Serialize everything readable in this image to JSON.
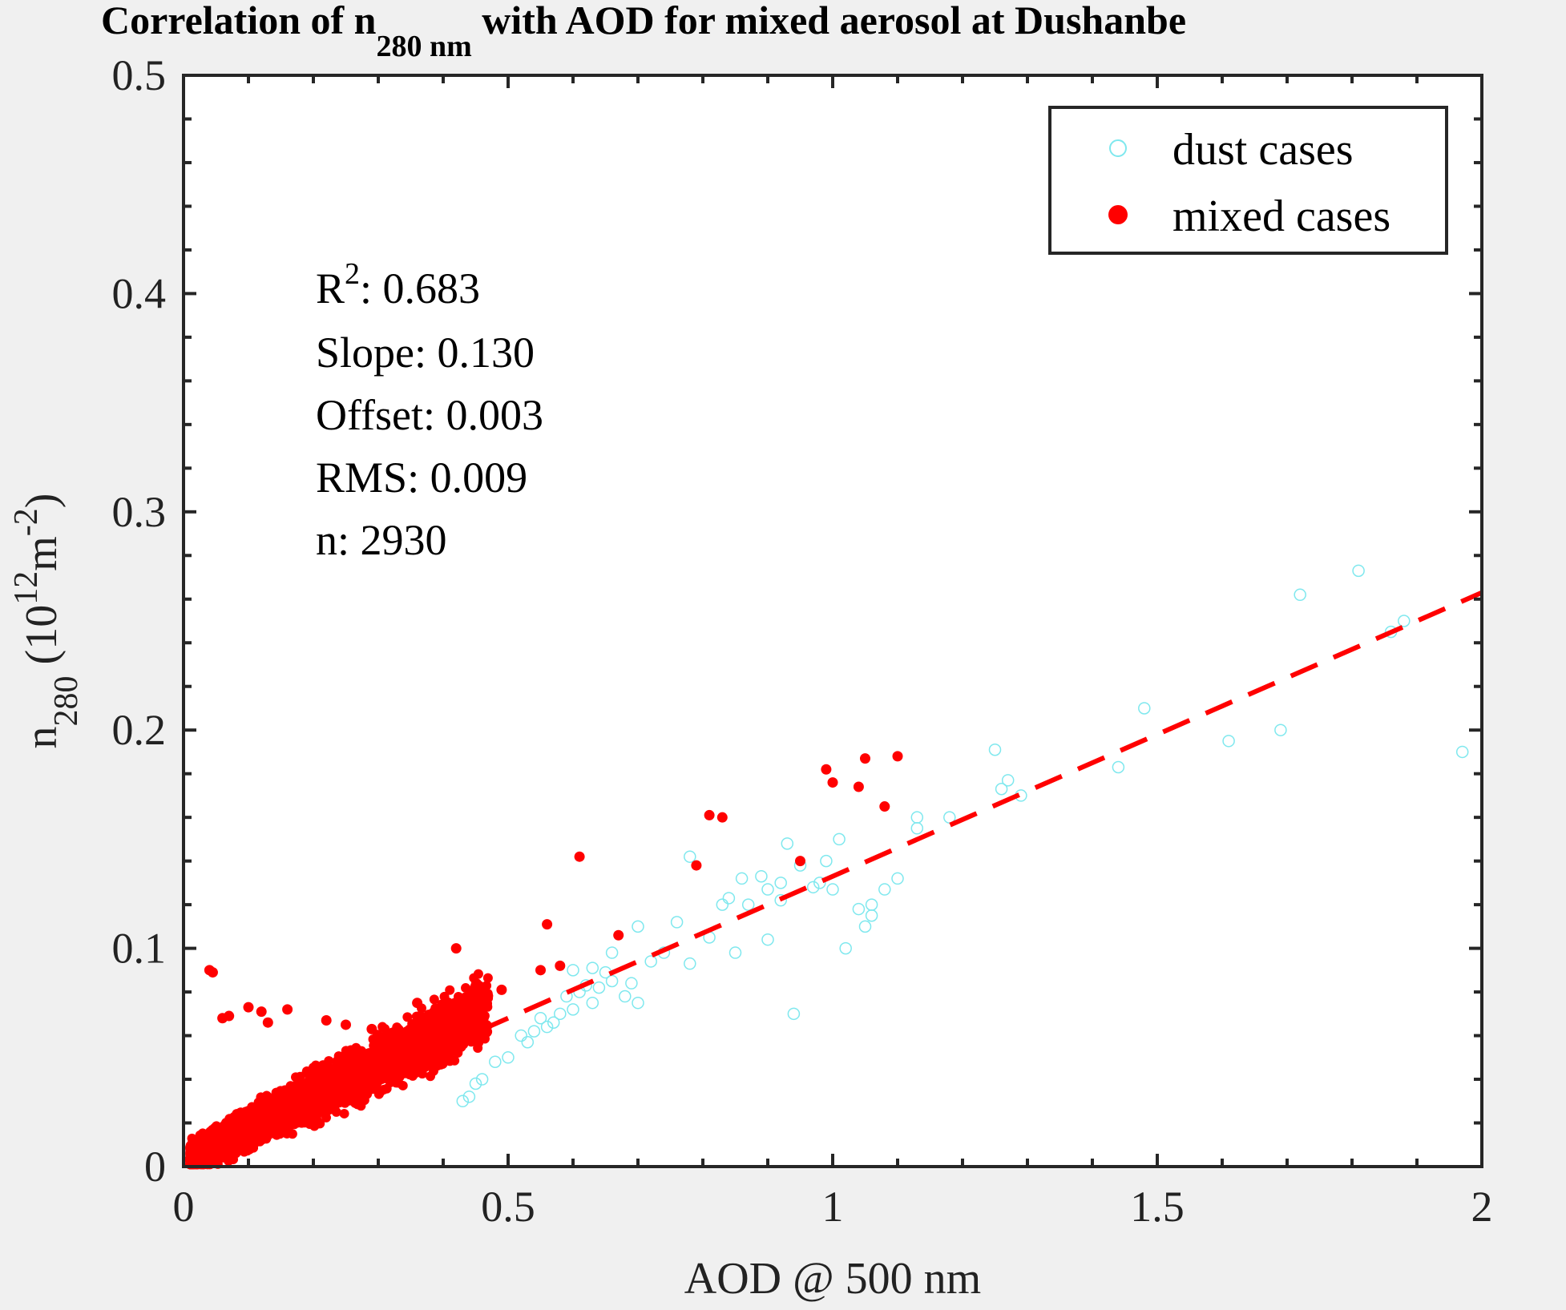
{
  "chart_data": {
    "type": "scatter",
    "title": {
      "prefix": "Correlation of n",
      "sub": "280 nm",
      "suffix": " with AOD for mixed aerosol at Dushanbe"
    },
    "xlabel": "AOD @ 500 nm",
    "ylabel": {
      "base": "n",
      "sub": "280",
      "unit_open": " (10",
      "unit_exp1": "12",
      "unit_mid": "m",
      "unit_exp2": "-2",
      "unit_close": ")"
    },
    "xlim": [
      0,
      2
    ],
    "ylim": [
      0,
      0.5
    ],
    "xticks": [
      0,
      0.5,
      1,
      1.5,
      2
    ],
    "xtick_labels": [
      "0",
      "0.5",
      "1",
      "1.5",
      "2"
    ],
    "yticks": [
      0,
      0.1,
      0.2,
      0.3,
      0.4,
      0.5
    ],
    "ytick_labels": [
      "0",
      "0.1",
      "0.2",
      "0.3",
      "0.4",
      "0.5"
    ],
    "grid": false,
    "legend": {
      "placement": "top-right",
      "entries": [
        {
          "label": "dust cases",
          "marker": "open-circle",
          "color": "#7fe8ee"
        },
        {
          "label": "mixed cases",
          "marker": "filled-circle",
          "color": "#ff0000"
        }
      ]
    },
    "stats": {
      "r2_label": "R",
      "r2_exp": "2",
      "r2_value": ": 0.683",
      "slope": "Slope: 0.130",
      "offset": "Offset: 0.003",
      "rms": "RMS: 0.009",
      "n": "n: 2930"
    },
    "fit_line": {
      "slope": 0.13,
      "offset": 0.003,
      "x_range": [
        0,
        2
      ],
      "color": "#ff0000",
      "style": "dashed"
    },
    "series": [
      {
        "name": "dust cases",
        "color": "#7fe8ee",
        "marker": "open-circle",
        "points": [
          [
            1.81,
            0.273
          ],
          [
            1.72,
            0.262
          ],
          [
            1.88,
            0.25
          ],
          [
            1.86,
            0.245
          ],
          [
            1.48,
            0.21
          ],
          [
            1.61,
            0.195
          ],
          [
            1.69,
            0.2
          ],
          [
            1.97,
            0.19
          ],
          [
            1.25,
            0.191
          ],
          [
            1.44,
            0.183
          ],
          [
            1.27,
            0.177
          ],
          [
            1.26,
            0.173
          ],
          [
            1.29,
            0.17
          ],
          [
            1.18,
            0.16
          ],
          [
            1.13,
            0.155
          ],
          [
            1.13,
            0.16
          ],
          [
            1.1,
            0.132
          ],
          [
            1.08,
            0.127
          ],
          [
            1.06,
            0.12
          ],
          [
            1.05,
            0.11
          ],
          [
            1.04,
            0.118
          ],
          [
            1.06,
            0.115
          ],
          [
            1.02,
            0.1
          ],
          [
            1.01,
            0.15
          ],
          [
            0.99,
            0.14
          ],
          [
            0.98,
            0.13
          ],
          [
            0.97,
            0.128
          ],
          [
            0.95,
            0.138
          ],
          [
            0.93,
            0.148
          ],
          [
            0.92,
            0.13
          ],
          [
            0.9,
            0.127
          ],
          [
            0.89,
            0.133
          ],
          [
            0.87,
            0.12
          ],
          [
            0.86,
            0.132
          ],
          [
            0.84,
            0.123
          ],
          [
            0.83,
            0.12
          ],
          [
            0.78,
            0.142
          ],
          [
            0.76,
            0.112
          ],
          [
            0.78,
            0.093
          ],
          [
            0.74,
            0.098
          ],
          [
            0.72,
            0.094
          ],
          [
            0.7,
            0.11
          ],
          [
            0.69,
            0.084
          ],
          [
            0.7,
            0.075
          ],
          [
            0.68,
            0.078
          ],
          [
            0.66,
            0.098
          ],
          [
            0.66,
            0.085
          ],
          [
            0.65,
            0.089
          ],
          [
            0.64,
            0.082
          ],
          [
            0.63,
            0.075
          ],
          [
            0.62,
            0.083
          ],
          [
            0.61,
            0.08
          ],
          [
            0.6,
            0.072
          ],
          [
            0.59,
            0.078
          ],
          [
            0.58,
            0.07
          ],
          [
            0.57,
            0.066
          ],
          [
            0.56,
            0.064
          ],
          [
            0.55,
            0.068
          ],
          [
            0.54,
            0.062
          ],
          [
            0.53,
            0.057
          ],
          [
            0.52,
            0.06
          ],
          [
            0.5,
            0.05
          ],
          [
            0.48,
            0.048
          ],
          [
            0.46,
            0.04
          ],
          [
            0.45,
            0.038
          ],
          [
            0.44,
            0.032
          ],
          [
            0.43,
            0.03
          ],
          [
            0.85,
            0.098
          ],
          [
            0.9,
            0.104
          ],
          [
            0.94,
            0.07
          ],
          [
            0.6,
            0.09
          ],
          [
            0.63,
            0.091
          ],
          [
            0.92,
            0.122
          ],
          [
            1.0,
            0.127
          ],
          [
            0.81,
            0.105
          ]
        ]
      },
      {
        "name": "mixed cases",
        "color": "#ff0000",
        "marker": "filled-circle",
        "outliers": [
          [
            0.04,
            0.09
          ],
          [
            0.045,
            0.089
          ],
          [
            0.61,
            0.142
          ],
          [
            0.56,
            0.111
          ],
          [
            0.67,
            0.106
          ],
          [
            0.42,
            0.1
          ],
          [
            0.81,
            0.161
          ],
          [
            0.83,
            0.16
          ],
          [
            0.79,
            0.138
          ],
          [
            0.95,
            0.14
          ],
          [
            0.99,
            0.182
          ],
          [
            1.0,
            0.176
          ],
          [
            1.04,
            0.174
          ],
          [
            1.05,
            0.187
          ],
          [
            1.1,
            0.188
          ],
          [
            1.08,
            0.165
          ],
          [
            0.58,
            0.092
          ],
          [
            0.55,
            0.09
          ],
          [
            0.49,
            0.081
          ],
          [
            0.46,
            0.078
          ],
          [
            0.1,
            0.073
          ],
          [
            0.12,
            0.071
          ],
          [
            0.16,
            0.072
          ],
          [
            0.22,
            0.067
          ],
          [
            0.25,
            0.065
          ],
          [
            0.07,
            0.069
          ],
          [
            0.06,
            0.068
          ],
          [
            0.13,
            0.066
          ],
          [
            0.29,
            0.063
          ],
          [
            0.36,
            0.075
          ]
        ],
        "cloud": {
          "count": 2900,
          "x_range": [
            0.01,
            0.47
          ],
          "slope": 0.15,
          "offset": 0.002,
          "spread": 0.012
        }
      }
    ]
  }
}
